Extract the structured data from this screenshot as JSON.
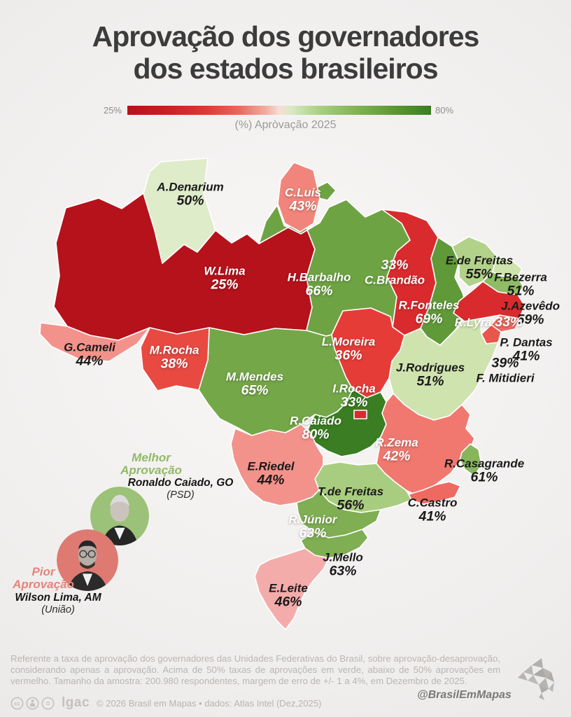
{
  "title": {
    "line1": "Aprovação dos governadores",
    "line2": "dos estados brasileiros"
  },
  "legend": {
    "min_label": "25%",
    "max_label": "80%",
    "caption": "(%) Apròvação 2025"
  },
  "chart_data": {
    "type": "choropleth-map",
    "title": "Aprovação dos governadores dos estados brasileiros",
    "value_label": "(%) Aprovação 2025",
    "color_scale": {
      "min": 25,
      "max": 80,
      "min_color": "#b5121b",
      "mid_color": "#f6ded5",
      "max_color": "#3a7d22",
      "rule": "acima de 50% verde, abaixo de 50% vermelho"
    },
    "states": [
      {
        "id": "RR",
        "governor": "A.Denarium",
        "value": 50
      },
      {
        "id": "AP",
        "governor": "C.Luis",
        "value": 43
      },
      {
        "id": "AM",
        "governor": "W.Lima",
        "value": 25
      },
      {
        "id": "PA",
        "governor": "H.Barbalho",
        "value": 66
      },
      {
        "id": "MA",
        "governor": "C.Brandão",
        "value": 33
      },
      {
        "id": "PI",
        "governor": "R.Fonteles",
        "value": 69
      },
      {
        "id": "CE",
        "governor": "E.de Freitas",
        "value": 55
      },
      {
        "id": "RN",
        "governor": "F.Bezerra",
        "value": 51
      },
      {
        "id": "PB",
        "governor": "J.Azevêdo",
        "value": 59
      },
      {
        "id": "PE",
        "governor": "R.Lyra",
        "value": 33
      },
      {
        "id": "AL",
        "governor": "P. Dantas",
        "value": 41
      },
      {
        "id": "SE",
        "governor": "F. Mitidieri",
        "value": 39
      },
      {
        "id": "AC",
        "governor": "G.Cameli",
        "value": 44
      },
      {
        "id": "RO",
        "governor": "M.Rocha",
        "value": 38
      },
      {
        "id": "TO",
        "governor": "L.Moreira",
        "value": 36
      },
      {
        "id": "MT",
        "governor": "M.Mendes",
        "value": 65
      },
      {
        "id": "BA",
        "governor": "J.Rodrigues",
        "value": 51
      },
      {
        "id": "DF",
        "governor": "I.Rocha",
        "value": 33
      },
      {
        "id": "GO",
        "governor": "R.Caiado",
        "value": 80
      },
      {
        "id": "MG",
        "governor": "R.Zema",
        "value": 42
      },
      {
        "id": "ES",
        "governor": "R.Casagrande",
        "value": 61
      },
      {
        "id": "RJ",
        "governor": "C.Castro",
        "value": 41
      },
      {
        "id": "MS",
        "governor": "E.Riedel",
        "value": 44
      },
      {
        "id": "SP",
        "governor": "T.de Freitas",
        "value": 56
      },
      {
        "id": "PR",
        "governor": "R.Júnior",
        "value": 63
      },
      {
        "id": "SC",
        "governor": "J.Mello",
        "value": 63
      },
      {
        "id": "RS",
        "governor": "E.Leite",
        "value": 46
      }
    ]
  },
  "annotations": {
    "best": {
      "tag_line1": "Melhor",
      "tag_line2": "Aprovação",
      "name": "Ronaldo Caiado, GO",
      "party": "(PSD)",
      "color": "#92b969"
    },
    "worst": {
      "tag_line1": "Pior",
      "tag_line2": "Aprovação",
      "name": "Wilson Lima, AM",
      "party": "(União)",
      "color": "#e5837b"
    }
  },
  "footer": {
    "note": "Referente a taxa de aprovação dos governadores das Unidades Federativas do Brasil, sobre aprovação-desaprovação, considerando apenas a aprovação. Acima de 50% taxas de aprovações em verde, abaixo de 50% aprovações em vermelho. Tamanho da amostra: 200.980 respondentes, margem de erro de +/- 1 a 4%, em Dezembro de 2025.",
    "logo_text": "lgac",
    "credit": "© 2026 Brasil em Mapas • dados: Atlas Intel (Dez,2025)",
    "handle": "@BrasilEmMapas"
  }
}
